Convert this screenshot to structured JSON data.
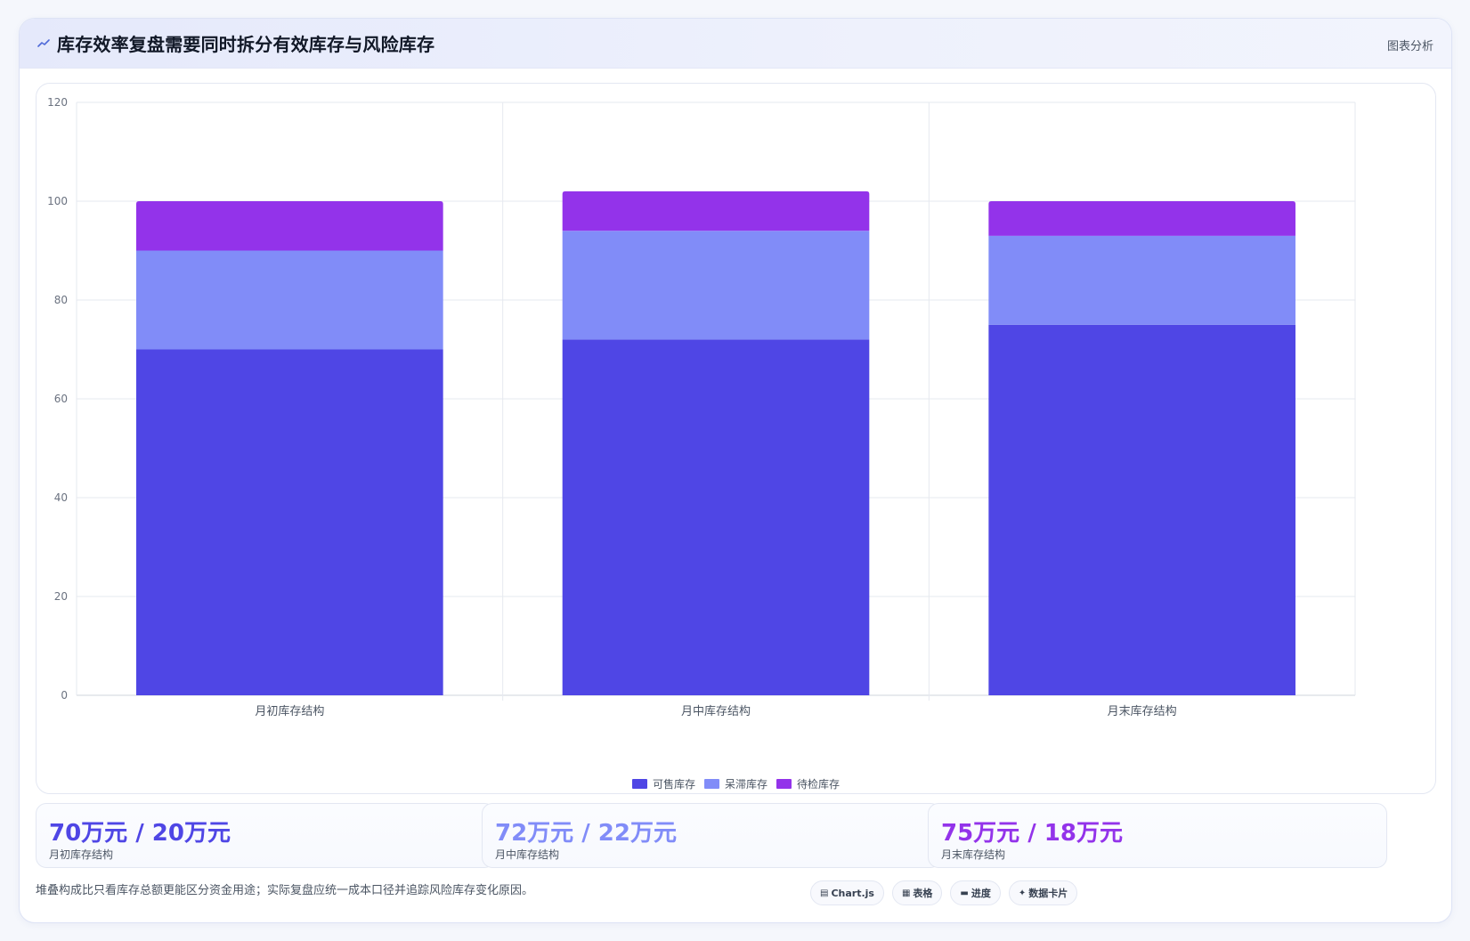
{
  "header": {
    "icon": "line-chart-icon",
    "title": "库存效率复盘需要同时拆分有效库存与风险库存",
    "tag": "图表分析"
  },
  "colors": {
    "available": "#4f46e5",
    "stagnant": "#818cf8",
    "pending": "#9333ea"
  },
  "chart_data": {
    "type": "bar",
    "stacked": true,
    "categories": [
      "月初库存结构",
      "月中库存结构",
      "月末库存结构"
    ],
    "series": [
      {
        "name": "可售库存",
        "values": [
          70,
          72,
          75
        ],
        "color": "#4f46e5"
      },
      {
        "name": "呆滞库存",
        "values": [
          20,
          22,
          18
        ],
        "color": "#818cf8"
      },
      {
        "name": "待检库存",
        "values": [
          10,
          8,
          7
        ],
        "color": "#9333ea"
      }
    ],
    "yticks": [
      0,
      20,
      40,
      60,
      80,
      100,
      120
    ],
    "ylim": [
      0,
      120
    ],
    "grid": true,
    "legend": "bottom"
  },
  "stats": [
    {
      "value": "70万元 / 20万元",
      "label": "月初库存结构",
      "color": "#4f46e5"
    },
    {
      "value": "72万元 / 22万元",
      "label": "月中库存结构",
      "color": "#818cf8"
    },
    {
      "value": "75万元 / 18万元",
      "label": "月末库存结构",
      "color": "#9333ea"
    }
  ],
  "footer": {
    "note": "堆叠构成比只看库存总额更能区分资金用途；实际复盘应统一成本口径并追踪风险库存变化原因。",
    "tags": [
      {
        "icon": "chart-icon",
        "label": "Chart.js"
      },
      {
        "icon": "table-icon",
        "label": "表格"
      },
      {
        "icon": "progress-icon",
        "label": "进度"
      },
      {
        "icon": "sparkle-icon",
        "label": "数据卡片"
      }
    ]
  }
}
